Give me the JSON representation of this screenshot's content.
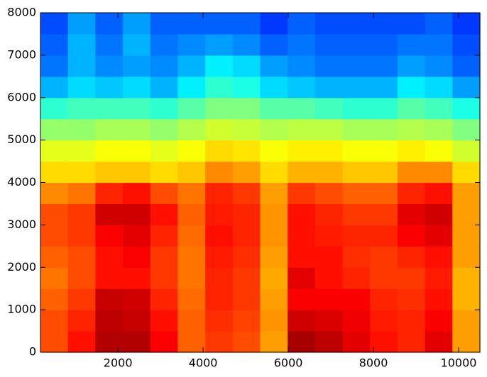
{
  "chart_data": {
    "type": "heatmap",
    "colormap": "jet",
    "x": [
      503,
      1148,
      1793,
      2438,
      3083,
      3728,
      4373,
      5018,
      5663,
      6308,
      6953,
      7598,
      8243,
      8888,
      9533,
      10178
    ],
    "y": [
      250,
      750,
      1250,
      1750,
      2250,
      2750,
      3250,
      3750,
      4250,
      4750,
      5250,
      5750,
      6250,
      6750,
      7250,
      7750
    ],
    "z": [
      [
        0.8,
        0.86,
        0.95,
        0.95,
        0.88,
        0.78,
        0.82,
        0.8,
        0.72,
        0.96,
        0.94,
        0.9,
        0.86,
        0.84,
        0.9,
        0.72
      ],
      [
        0.8,
        0.84,
        0.94,
        0.93,
        0.86,
        0.78,
        0.83,
        0.81,
        0.73,
        0.92,
        0.91,
        0.89,
        0.85,
        0.84,
        0.88,
        0.72
      ],
      [
        0.78,
        0.82,
        0.93,
        0.92,
        0.84,
        0.77,
        0.84,
        0.82,
        0.72,
        0.88,
        0.88,
        0.88,
        0.84,
        0.83,
        0.86,
        0.7
      ],
      [
        0.76,
        0.8,
        0.86,
        0.86,
        0.82,
        0.76,
        0.84,
        0.82,
        0.71,
        0.9,
        0.86,
        0.84,
        0.82,
        0.82,
        0.85,
        0.7
      ],
      [
        0.78,
        0.8,
        0.86,
        0.88,
        0.82,
        0.76,
        0.85,
        0.83,
        0.72,
        0.86,
        0.86,
        0.83,
        0.82,
        0.84,
        0.86,
        0.72
      ],
      [
        0.8,
        0.82,
        0.88,
        0.9,
        0.84,
        0.77,
        0.86,
        0.84,
        0.73,
        0.86,
        0.85,
        0.84,
        0.84,
        0.88,
        0.9,
        0.72
      ],
      [
        0.8,
        0.82,
        0.92,
        0.92,
        0.86,
        0.78,
        0.85,
        0.84,
        0.73,
        0.86,
        0.84,
        0.82,
        0.82,
        0.9,
        0.92,
        0.72
      ],
      [
        0.74,
        0.76,
        0.84,
        0.86,
        0.8,
        0.76,
        0.84,
        0.82,
        0.72,
        0.82,
        0.8,
        0.78,
        0.78,
        0.84,
        0.86,
        0.72
      ],
      [
        0.66,
        0.66,
        0.68,
        0.68,
        0.66,
        0.68,
        0.74,
        0.72,
        0.66,
        0.7,
        0.7,
        0.68,
        0.68,
        0.74,
        0.74,
        0.66
      ],
      [
        0.6,
        0.6,
        0.62,
        0.62,
        0.6,
        0.62,
        0.66,
        0.65,
        0.62,
        0.64,
        0.64,
        0.62,
        0.62,
        0.64,
        0.62,
        0.58
      ],
      [
        0.52,
        0.52,
        0.54,
        0.54,
        0.52,
        0.55,
        0.58,
        0.57,
        0.55,
        0.56,
        0.56,
        0.54,
        0.54,
        0.55,
        0.54,
        0.5
      ],
      [
        0.42,
        0.44,
        0.44,
        0.44,
        0.42,
        0.46,
        0.5,
        0.5,
        0.46,
        0.46,
        0.44,
        0.42,
        0.42,
        0.46,
        0.44,
        0.4
      ],
      [
        0.3,
        0.34,
        0.32,
        0.34,
        0.3,
        0.36,
        0.42,
        0.4,
        0.34,
        0.32,
        0.3,
        0.3,
        0.3,
        0.36,
        0.34,
        0.28
      ],
      [
        0.24,
        0.3,
        0.26,
        0.28,
        0.26,
        0.3,
        0.36,
        0.34,
        0.28,
        0.26,
        0.24,
        0.24,
        0.24,
        0.28,
        0.26,
        0.22
      ],
      [
        0.22,
        0.3,
        0.24,
        0.3,
        0.24,
        0.26,
        0.28,
        0.26,
        0.22,
        0.24,
        0.22,
        0.22,
        0.22,
        0.24,
        0.24,
        0.2
      ],
      [
        0.2,
        0.28,
        0.22,
        0.28,
        0.22,
        0.22,
        0.22,
        0.22,
        0.18,
        0.22,
        0.2,
        0.2,
        0.2,
        0.2,
        0.22,
        0.18
      ]
    ],
    "xlim": [
      180,
      10500
    ],
    "xticks": [
      2000,
      4000,
      6000,
      8000,
      10000
    ],
    "ylim": [
      0,
      8000
    ],
    "yticks": [
      0,
      1000,
      2000,
      3000,
      4000,
      5000,
      6000,
      7000,
      8000
    ]
  }
}
